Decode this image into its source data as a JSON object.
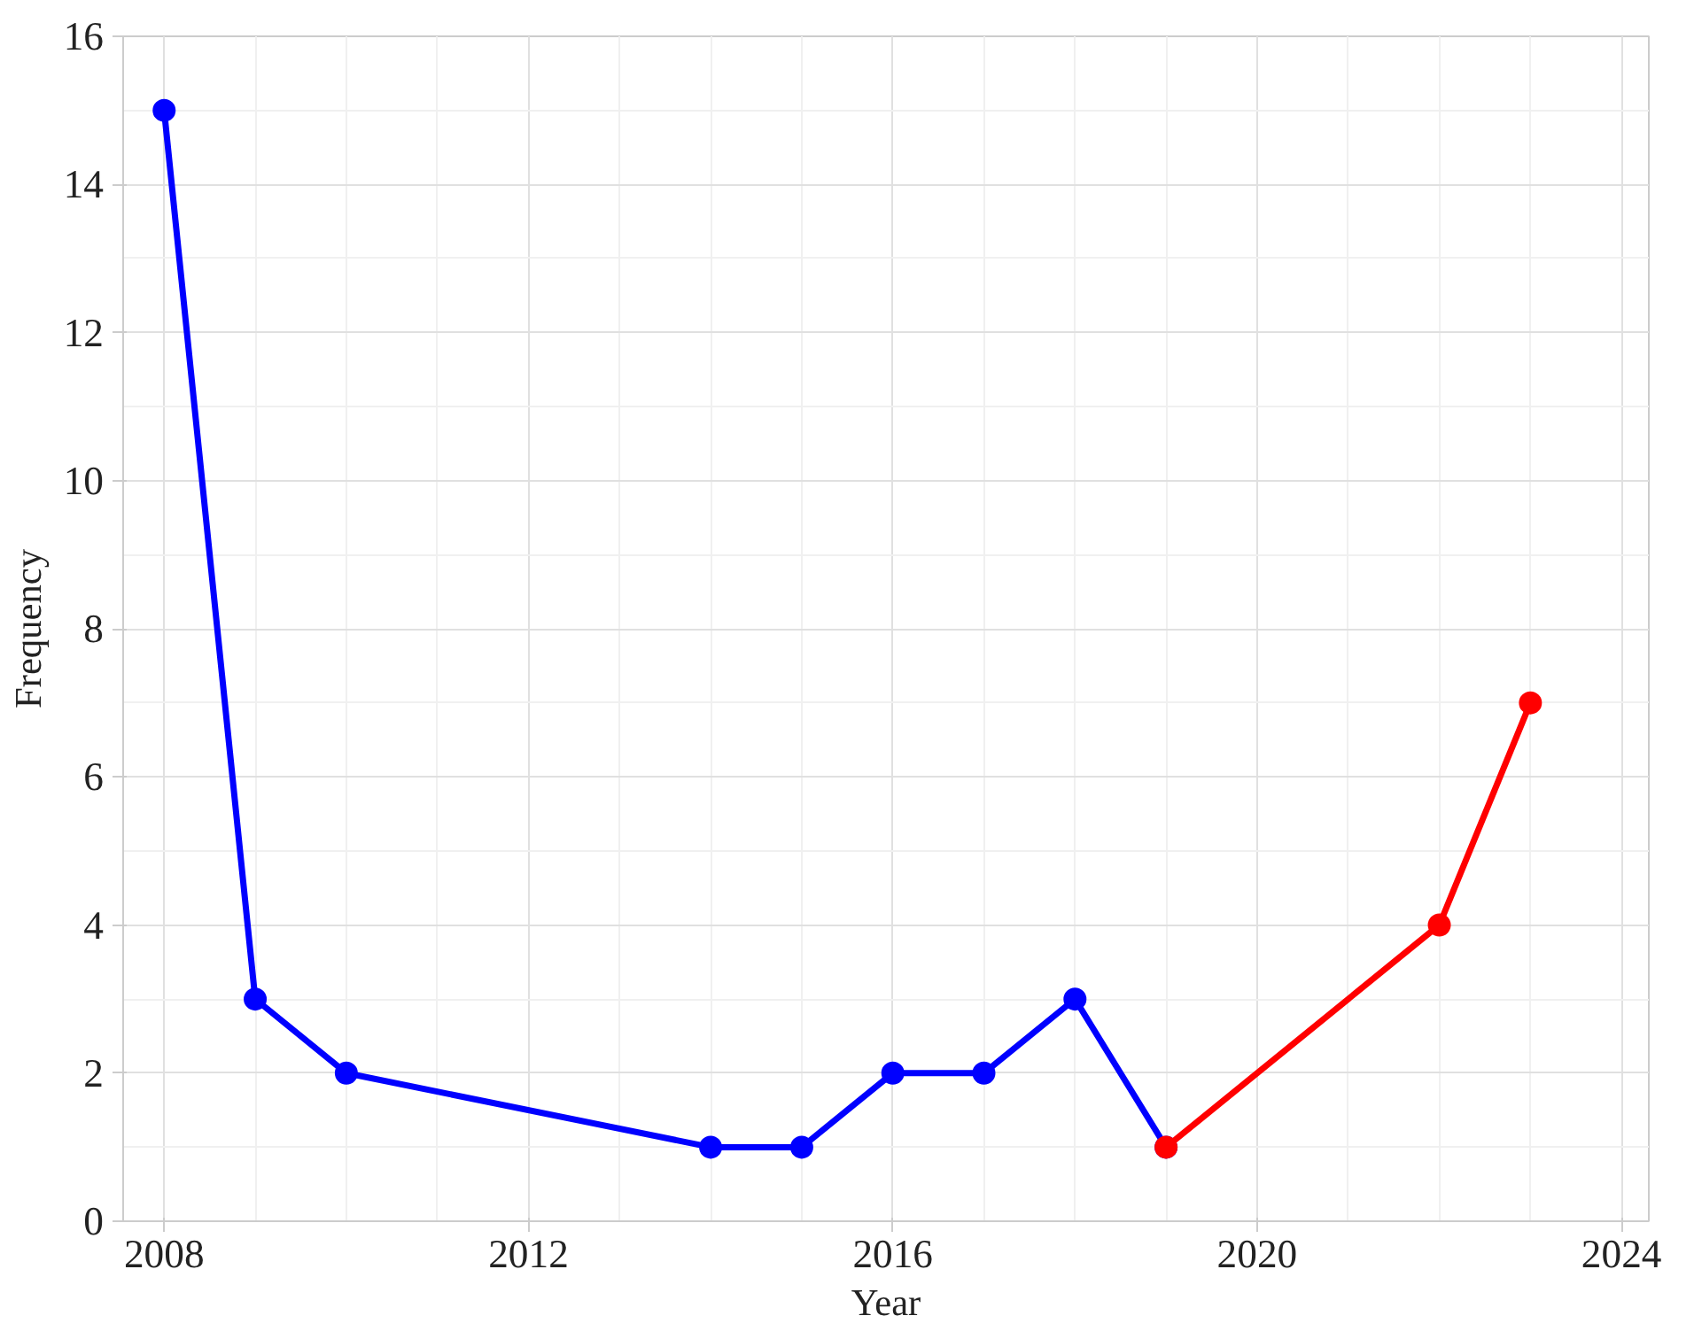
{
  "chart_data": {
    "type": "line",
    "xlabel": "Year",
    "ylabel": "Frequency",
    "xlim": [
      2007.55,
      2024.3
    ],
    "ylim": [
      0,
      16
    ],
    "xticks": [
      2008,
      2012,
      2016,
      2020,
      2024
    ],
    "yticks": [
      0,
      2,
      4,
      6,
      8,
      10,
      12,
      14,
      16
    ],
    "grid": true,
    "marker": "circle",
    "line_style": "solid",
    "series": [
      {
        "color": "#0000ff",
        "x": [
          2008,
          2009,
          2010,
          2014,
          2015,
          2016,
          2017,
          2018,
          2019
        ],
        "values": [
          15,
          3,
          2,
          1,
          1,
          2,
          2,
          3,
          1
        ]
      },
      {
        "color": "#ff0000",
        "x": [
          2019,
          2022,
          2023
        ],
        "values": [
          1,
          4,
          7
        ]
      }
    ]
  }
}
